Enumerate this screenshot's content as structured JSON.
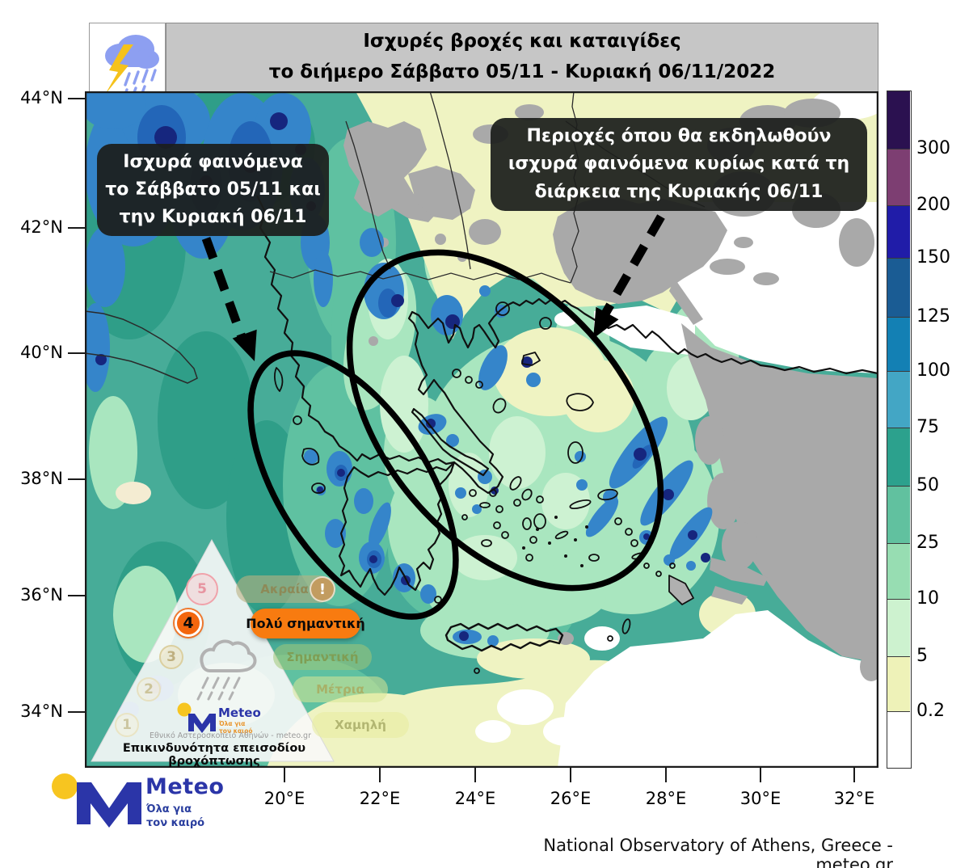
{
  "header": {
    "title_line1": "Ισχυρές βροχές και καταιγίδες",
    "title_line2": "το διήμερο Σάββατο 05/11 - Κυριακή 06/11/2022"
  },
  "callouts": {
    "saturday": {
      "line1": "Ισχυρά φαινόμενα",
      "line2": "το Σάββατο 05/11 και",
      "line3": "την Κυριακή 06/11"
    },
    "sunday": {
      "line1": "Περιοχές όπου θα εκδηλωθούν",
      "line2": "ισχυρά φαινόμενα κυρίως κατά τη",
      "line3": "διάρκεια της Κυριακής 06/11"
    }
  },
  "axes": {
    "y_labels": [
      "44°N",
      "42°N",
      "40°N",
      "38°N",
      "36°N",
      "34°N"
    ],
    "x_labels": [
      "20°E",
      "22°E",
      "24°E",
      "26°E",
      "28°E",
      "30°E",
      "32°E"
    ]
  },
  "colorbar": {
    "labels": [
      "300",
      "200",
      "150",
      "125",
      "100",
      "75",
      "50",
      "25",
      "10",
      "5",
      "0.2"
    ],
    "colors": [
      "#2B1150",
      "#7D3E72",
      "#201CA8",
      "#1A5C94",
      "#1380B4",
      "#43A6C5",
      "#2CA18D",
      "#61C19F",
      "#97DDB2",
      "#CDF2CF",
      "#EEF2B8",
      "#FFFFFF"
    ]
  },
  "legend_pyramid": {
    "footer": "Επικινδυνότητα επεισοδίου βροχόπτωσης",
    "org_line": "Εθνικό Αστεροσκοπείο Αθηνών - meteo.gr",
    "active_level": "4",
    "levels": [
      {
        "number": "5",
        "label": "Ακραία",
        "badge": "!",
        "active": false,
        "circle_bg": "rgba(247,208,212,0.55)",
        "circle_border": "#f0a2aa",
        "num_color": "#e794a0",
        "pill_bg": "rgba(186,178,130,0.6)",
        "label_color": "#8d8a58"
      },
      {
        "number": "4",
        "label": "Πολύ σημαντική",
        "badge": "",
        "active": true,
        "circle_bg": "#f3660e",
        "circle_border": "#ffffff",
        "num_color": "#0a0a0a",
        "pill_bg": "#f87b10",
        "label_color": "#0a0a0a"
      },
      {
        "number": "3",
        "label": "Σημαντική",
        "badge": "",
        "active": false,
        "circle_bg": "rgba(238,228,192,0.55)",
        "circle_border": "#dbcf9f",
        "num_color": "#bfb080",
        "pill_bg": "rgba(160,198,120,0.55)",
        "label_color": "#7f9e54"
      },
      {
        "number": "2",
        "label": "Μέτρια",
        "badge": "",
        "active": false,
        "circle_bg": "rgba(244,240,216,0.5)",
        "circle_border": "#e6e0c0",
        "num_color": "#ccc49a",
        "pill_bg": "rgba(215,230,150,0.55)",
        "label_color": "#a8b168"
      },
      {
        "number": "1",
        "label": "Χαμηλή",
        "badge": "",
        "active": false,
        "circle_bg": "rgba(246,242,220,0.5)",
        "circle_border": "#e9e4c4",
        "num_color": "#ccc6a0",
        "pill_bg": "rgba(232,236,160,0.6)",
        "label_color": "#b2b672"
      }
    ]
  },
  "logo": {
    "brand": "Meteo",
    "tagline_line1": "Όλα για",
    "tagline_line2": "τον καιρό"
  },
  "attribution": "National Observatory of Athens, Greece - meteo.gr",
  "map_colors": {
    "sea_teal": "#47AC98",
    "deep_teal": "#2F9E88",
    "green": "#5FC1A1",
    "mint": "#A9E6BF",
    "pale_mint": "#CDF2D2",
    "pale_yellow": "#EFF3C2",
    "no_rain_white": "#FFFFFF",
    "out_of_domain_gray": "#A9A9A9",
    "blue": "#3585CA",
    "mid_blue": "#2366B8",
    "navy": "#16267E",
    "active_risk_orange": "#f87b10",
    "title_bar_gray": "#c6c6c6"
  }
}
